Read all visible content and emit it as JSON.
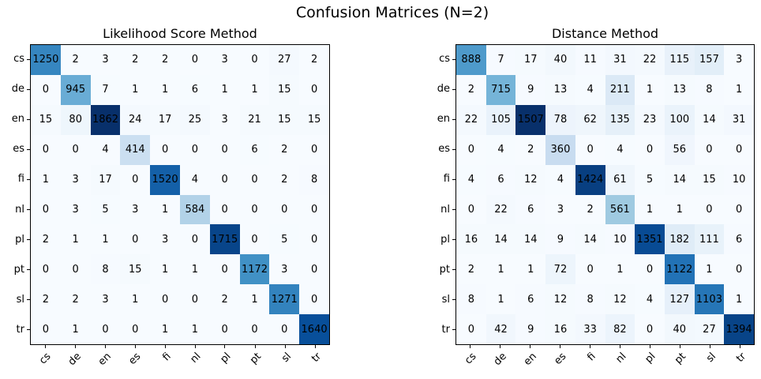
{
  "figure_title": "Confusion Matrices (N=2)",
  "colors": {
    "colormap": "Blues",
    "cmap_anchors": [
      "#f7fbff",
      "#deebf7",
      "#c6dbef",
      "#9ecae1",
      "#6baed6",
      "#4292c6",
      "#2171b5",
      "#08519c",
      "#08306b"
    ],
    "annotation_text": "#000000",
    "spine": "#000000",
    "background": "#ffffff"
  },
  "chart_data": [
    {
      "type": "heatmap",
      "title": "Likelihood Score Method",
      "row_labels": [
        "cs",
        "de",
        "en",
        "es",
        "fi",
        "nl",
        "pl",
        "pt",
        "sl",
        "tr"
      ],
      "col_labels": [
        "cs",
        "de",
        "en",
        "es",
        "fi",
        "nl",
        "pl",
        "pt",
        "sl",
        "tr"
      ],
      "values": [
        [
          1250,
          2,
          3,
          2,
          2,
          0,
          3,
          0,
          27,
          2
        ],
        [
          0,
          945,
          7,
          1,
          1,
          6,
          1,
          1,
          15,
          0
        ],
        [
          15,
          80,
          1862,
          24,
          17,
          25,
          3,
          21,
          15,
          15
        ],
        [
          0,
          0,
          4,
          414,
          0,
          0,
          0,
          6,
          2,
          0
        ],
        [
          1,
          3,
          17,
          0,
          1520,
          4,
          0,
          0,
          2,
          8
        ],
        [
          0,
          3,
          5,
          3,
          1,
          584,
          0,
          0,
          0,
          0
        ],
        [
          2,
          1,
          1,
          0,
          3,
          0,
          1715,
          0,
          5,
          0
        ],
        [
          0,
          0,
          8,
          15,
          1,
          1,
          0,
          1172,
          3,
          0
        ],
        [
          2,
          2,
          3,
          1,
          0,
          0,
          2,
          1,
          1271,
          0
        ],
        [
          0,
          1,
          0,
          0,
          1,
          1,
          0,
          0,
          0,
          1640
        ]
      ],
      "vmin": 0,
      "vmax": 1862,
      "grid": false,
      "legend": false,
      "xtick_rotation_deg": 45
    },
    {
      "type": "heatmap",
      "title": "Distance Method",
      "row_labels": [
        "cs",
        "de",
        "en",
        "es",
        "fi",
        "nl",
        "pl",
        "pt",
        "sl",
        "tr"
      ],
      "col_labels": [
        "cs",
        "de",
        "en",
        "es",
        "fi",
        "nl",
        "pl",
        "pt",
        "sl",
        "tr"
      ],
      "values": [
        [
          888,
          7,
          17,
          40,
          11,
          31,
          22,
          115,
          157,
          3
        ],
        [
          2,
          715,
          9,
          13,
          4,
          211,
          1,
          13,
          8,
          1
        ],
        [
          22,
          105,
          1507,
          78,
          62,
          135,
          23,
          100,
          14,
          31
        ],
        [
          0,
          4,
          2,
          360,
          0,
          4,
          0,
          56,
          0,
          0
        ],
        [
          4,
          6,
          12,
          4,
          1424,
          61,
          5,
          14,
          15,
          10
        ],
        [
          0,
          22,
          6,
          3,
          2,
          561,
          1,
          1,
          0,
          0
        ],
        [
          16,
          14,
          14,
          9,
          14,
          10,
          1351,
          182,
          111,
          6
        ],
        [
          2,
          1,
          1,
          72,
          0,
          1,
          0,
          1122,
          1,
          0
        ],
        [
          8,
          1,
          6,
          12,
          8,
          12,
          4,
          127,
          1103,
          1
        ],
        [
          0,
          42,
          9,
          16,
          33,
          82,
          0,
          40,
          27,
          1394
        ]
      ],
      "vmin": 0,
      "vmax": 1507,
      "grid": false,
      "legend": false,
      "xtick_rotation_deg": 45
    }
  ]
}
